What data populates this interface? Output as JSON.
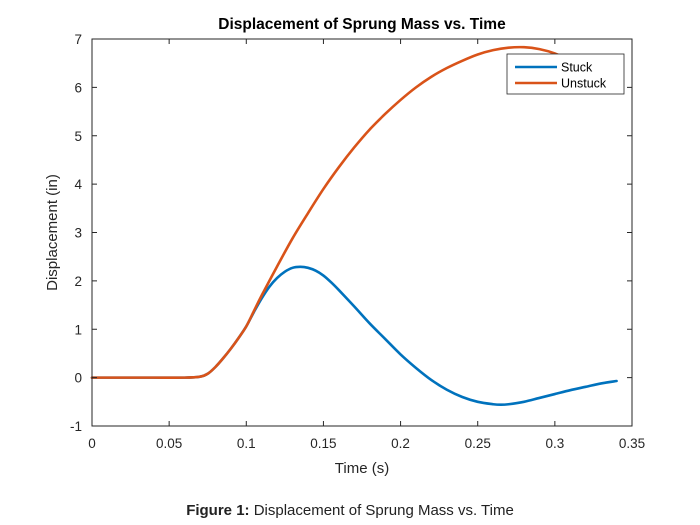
{
  "chart_data": {
    "type": "line",
    "title": "Displacement of Sprung Mass vs. Time",
    "xlabel": "Time (s)",
    "ylabel": "Displacement (in)",
    "xlim": [
      0,
      0.35
    ],
    "ylim": [
      -1,
      7
    ],
    "xticks": [
      0,
      0.05,
      0.1,
      0.15,
      0.2,
      0.25,
      0.3,
      0.35
    ],
    "xtick_labels": [
      "0",
      "0.05",
      "0.1",
      "0.15",
      "0.2",
      "0.25",
      "0.3",
      "0.35"
    ],
    "yticks": [
      -1,
      0,
      1,
      2,
      3,
      4,
      5,
      6,
      7
    ],
    "ytick_labels": [
      "-1",
      "0",
      "1",
      "2",
      "3",
      "4",
      "5",
      "6",
      "7"
    ],
    "grid": false,
    "legend_position": "top-right",
    "series": [
      {
        "name": "Stuck",
        "color": "#0072BD",
        "x": [
          0,
          0.02,
          0.04,
          0.06,
          0.07,
          0.075,
          0.08,
          0.085,
          0.09,
          0.095,
          0.1,
          0.105,
          0.11,
          0.115,
          0.12,
          0.125,
          0.13,
          0.135,
          0.14,
          0.145,
          0.15,
          0.155,
          0.16,
          0.17,
          0.18,
          0.19,
          0.2,
          0.21,
          0.22,
          0.23,
          0.24,
          0.25,
          0.26,
          0.265,
          0.27,
          0.28,
          0.29,
          0.3,
          0.31,
          0.32,
          0.33,
          0.34
        ],
        "y": [
          0,
          0,
          0,
          0,
          0.02,
          0.08,
          0.22,
          0.4,
          0.6,
          0.82,
          1.06,
          1.36,
          1.64,
          1.88,
          2.06,
          2.19,
          2.27,
          2.29,
          2.27,
          2.21,
          2.11,
          1.97,
          1.81,
          1.47,
          1.12,
          0.8,
          0.48,
          0.2,
          -0.05,
          -0.25,
          -0.4,
          -0.5,
          -0.55,
          -0.56,
          -0.55,
          -0.5,
          -0.42,
          -0.34,
          -0.26,
          -0.19,
          -0.12,
          -0.07
        ]
      },
      {
        "name": "Unstuck",
        "color": "#D95319",
        "x": [
          0,
          0.02,
          0.04,
          0.06,
          0.07,
          0.075,
          0.08,
          0.085,
          0.09,
          0.095,
          0.1,
          0.105,
          0.11,
          0.12,
          0.13,
          0.14,
          0.15,
          0.16,
          0.17,
          0.18,
          0.19,
          0.2,
          0.21,
          0.22,
          0.23,
          0.24,
          0.25,
          0.26,
          0.27,
          0.28,
          0.29,
          0.3,
          0.31,
          0.32,
          0.33,
          0.34
        ],
        "y": [
          0,
          0,
          0,
          0,
          0.02,
          0.08,
          0.22,
          0.4,
          0.6,
          0.82,
          1.06,
          1.38,
          1.7,
          2.3,
          2.88,
          3.4,
          3.9,
          4.35,
          4.76,
          5.13,
          5.45,
          5.74,
          6.0,
          6.22,
          6.4,
          6.55,
          6.68,
          6.77,
          6.82,
          6.83,
          6.79,
          6.7,
          6.55,
          6.38,
          6.18,
          5.97
        ]
      }
    ]
  },
  "caption": {
    "label": "Figure 1:",
    "text": " Displacement of Sprung Mass vs. Time"
  }
}
